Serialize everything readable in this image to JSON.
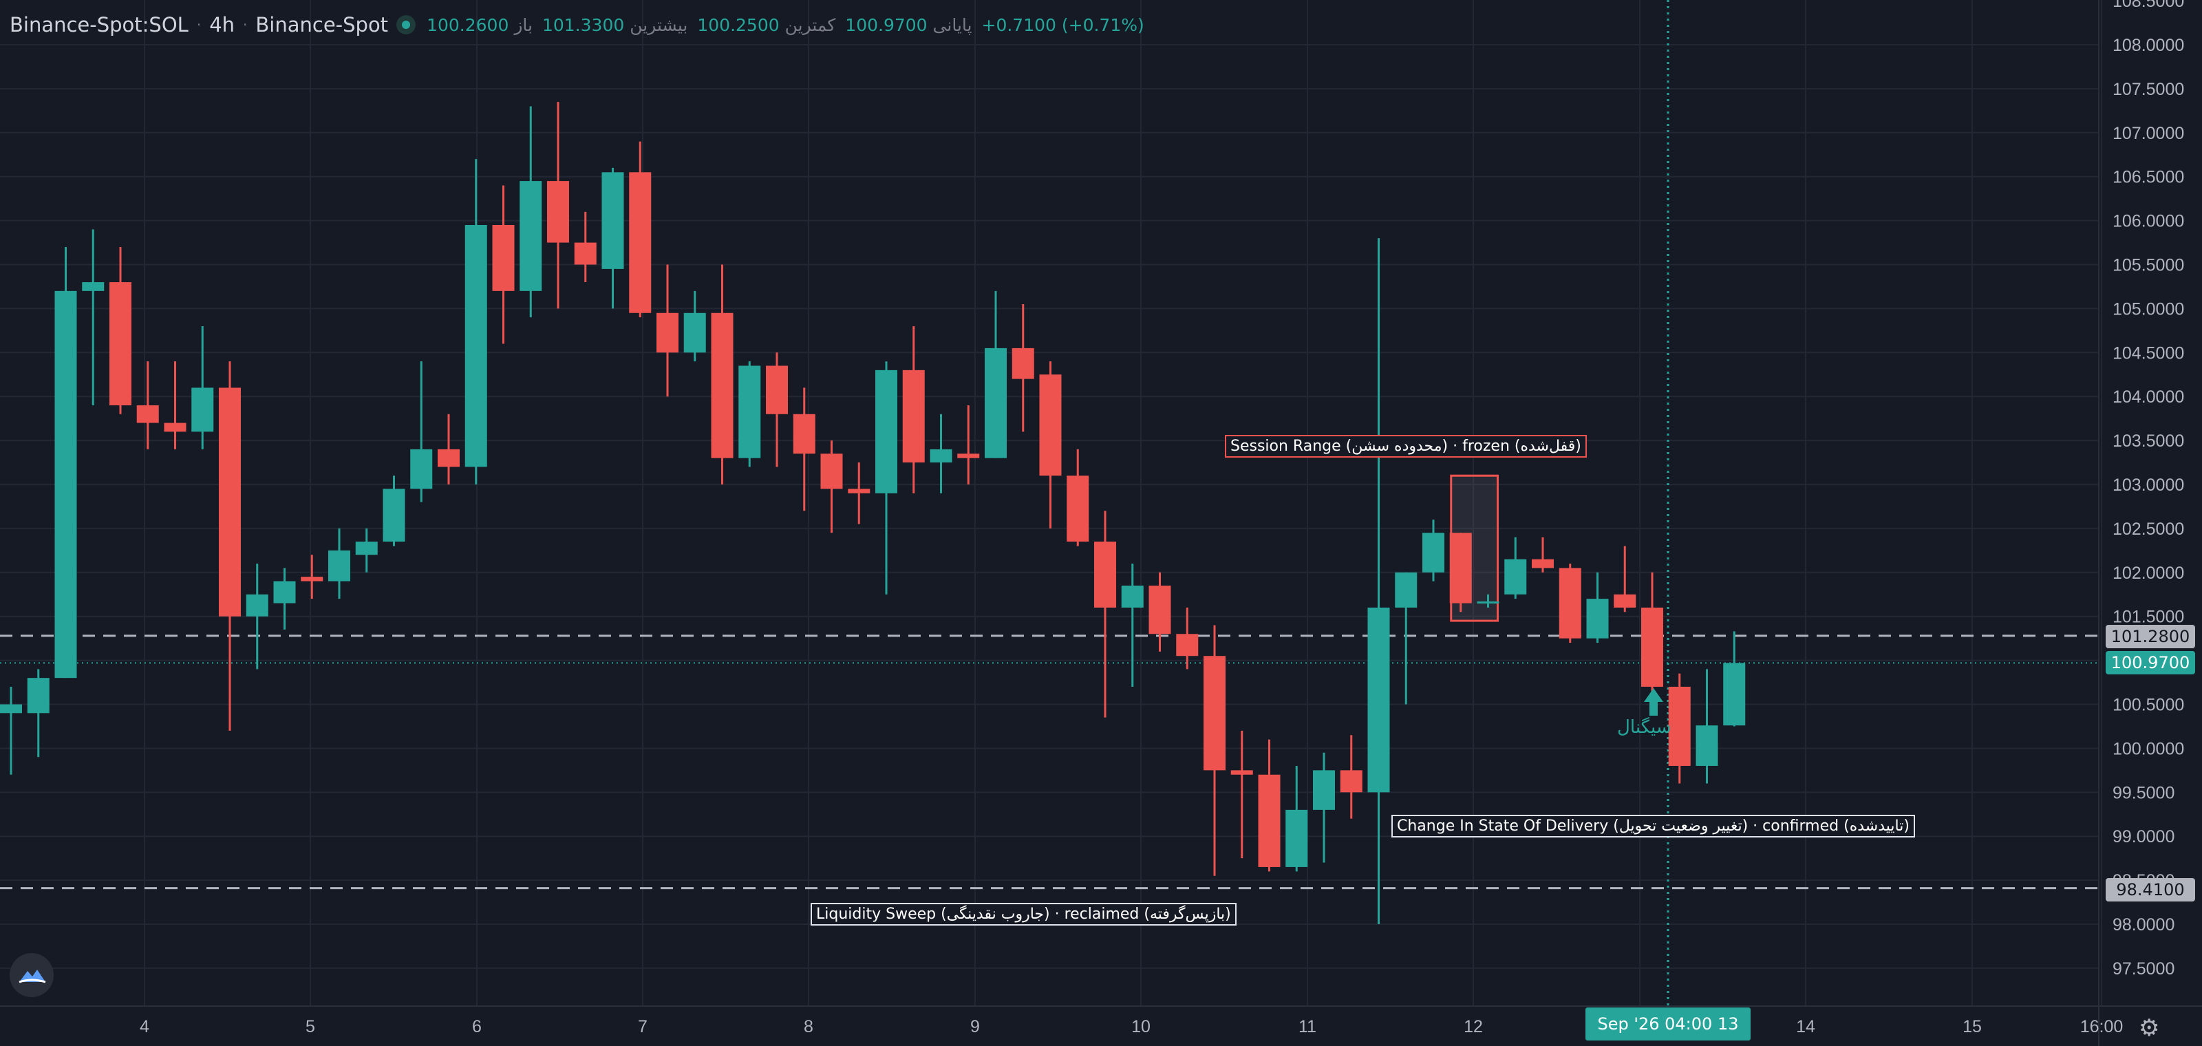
{
  "header": {
    "symbol": "Binance-Spot:SOL",
    "interval": "4h",
    "exchange": "Binance-Spot",
    "open_label": "باز",
    "open": "100.2600",
    "high_label": "بیشترین",
    "high": "101.3300",
    "low_label": "کمترین",
    "low": "100.2500",
    "close_label": "پایانی",
    "close": "100.9700",
    "change": "+0.7100 (+0.71%)"
  },
  "colors": {
    "up": "#26a69a",
    "down": "#ef5350",
    "background": "#161a25",
    "grid": "#232734"
  },
  "chart_data": {
    "type": "candlestick",
    "y_axis_ticks": [
      "108.0000",
      "107.5000",
      "107.0000",
      "106.5000",
      "106.0000",
      "105.5000",
      "105.0000",
      "104.5000",
      "104.0000",
      "103.5000",
      "103.0000",
      "102.5000",
      "102.0000",
      "101.5000",
      "101.0000",
      "100.5000",
      "100.0000",
      "99.5000",
      "99.0000",
      "98.5000",
      "98.0000",
      "97.5000"
    ],
    "y_axis_partial_top": "108.5000",
    "ylim": [
      97.2,
      108.6
    ],
    "x_axis_ticks": [
      "4",
      "5",
      "6",
      "7",
      "8",
      "9",
      "10",
      "11",
      "12",
      "13",
      "14",
      "15",
      "16:00"
    ],
    "candles": [
      {
        "o": 100.4,
        "h": 100.7,
        "l": 99.7,
        "c": 100.5
      },
      {
        "o": 100.4,
        "h": 100.9,
        "l": 99.9,
        "c": 100.8
      },
      {
        "o": 100.8,
        "h": 105.7,
        "l": 100.8,
        "c": 105.2
      },
      {
        "o": 105.2,
        "h": 105.9,
        "l": 103.9,
        "c": 105.3
      },
      {
        "o": 105.3,
        "h": 105.7,
        "l": 103.8,
        "c": 103.9
      },
      {
        "o": 103.9,
        "h": 104.4,
        "l": 103.4,
        "c": 103.7
      },
      {
        "o": 103.7,
        "h": 104.4,
        "l": 103.4,
        "c": 103.6
      },
      {
        "o": 103.6,
        "h": 104.8,
        "l": 103.4,
        "c": 104.1
      },
      {
        "o": 104.1,
        "h": 104.4,
        "l": 100.2,
        "c": 101.5
      },
      {
        "o": 101.5,
        "h": 102.1,
        "l": 100.9,
        "c": 101.75
      },
      {
        "o": 101.65,
        "h": 102.05,
        "l": 101.35,
        "c": 101.9
      },
      {
        "o": 101.95,
        "h": 102.2,
        "l": 101.7,
        "c": 101.9
      },
      {
        "o": 101.9,
        "h": 102.5,
        "l": 101.7,
        "c": 102.25
      },
      {
        "o": 102.2,
        "h": 102.5,
        "l": 102.0,
        "c": 102.35
      },
      {
        "o": 102.35,
        "h": 103.1,
        "l": 102.3,
        "c": 102.95
      },
      {
        "o": 102.95,
        "h": 104.4,
        "l": 102.8,
        "c": 103.4
      },
      {
        "o": 103.4,
        "h": 103.8,
        "l": 103.0,
        "c": 103.2
      },
      {
        "o": 103.2,
        "h": 106.7,
        "l": 103.0,
        "c": 105.95
      },
      {
        "o": 105.95,
        "h": 106.4,
        "l": 104.6,
        "c": 105.2
      },
      {
        "o": 105.2,
        "h": 107.3,
        "l": 104.9,
        "c": 106.45
      },
      {
        "o": 106.45,
        "h": 107.35,
        "l": 105.0,
        "c": 105.75
      },
      {
        "o": 105.75,
        "h": 106.1,
        "l": 105.3,
        "c": 105.5
      },
      {
        "o": 105.45,
        "h": 106.6,
        "l": 105.0,
        "c": 106.55
      },
      {
        "o": 106.55,
        "h": 106.9,
        "l": 104.9,
        "c": 104.95
      },
      {
        "o": 104.95,
        "h": 105.5,
        "l": 104.0,
        "c": 104.5
      },
      {
        "o": 104.5,
        "h": 105.2,
        "l": 104.4,
        "c": 104.95
      },
      {
        "o": 104.95,
        "h": 105.5,
        "l": 103.0,
        "c": 103.3
      },
      {
        "o": 103.3,
        "h": 104.4,
        "l": 103.2,
        "c": 104.35
      },
      {
        "o": 104.35,
        "h": 104.5,
        "l": 103.2,
        "c": 103.8
      },
      {
        "o": 103.8,
        "h": 104.1,
        "l": 102.7,
        "c": 103.35
      },
      {
        "o": 103.35,
        "h": 103.5,
        "l": 102.45,
        "c": 102.95
      },
      {
        "o": 102.95,
        "h": 103.25,
        "l": 102.55,
        "c": 102.9
      },
      {
        "o": 102.9,
        "h": 104.4,
        "l": 101.75,
        "c": 104.3
      },
      {
        "o": 104.3,
        "h": 104.8,
        "l": 102.9,
        "c": 103.25
      },
      {
        "o": 103.25,
        "h": 103.8,
        "l": 102.9,
        "c": 103.4
      },
      {
        "o": 103.35,
        "h": 103.9,
        "l": 103.0,
        "c": 103.3
      },
      {
        "o": 103.3,
        "h": 105.2,
        "l": 103.3,
        "c": 104.55
      },
      {
        "o": 104.55,
        "h": 105.05,
        "l": 103.6,
        "c": 104.2
      },
      {
        "o": 104.25,
        "h": 104.4,
        "l": 102.5,
        "c": 103.1
      },
      {
        "o": 103.1,
        "h": 103.4,
        "l": 102.3,
        "c": 102.35
      },
      {
        "o": 102.35,
        "h": 102.7,
        "l": 100.35,
        "c": 101.6
      },
      {
        "o": 101.6,
        "h": 102.1,
        "l": 100.7,
        "c": 101.85
      },
      {
        "o": 101.85,
        "h": 102.0,
        "l": 101.1,
        "c": 101.3
      },
      {
        "o": 101.3,
        "h": 101.6,
        "l": 100.9,
        "c": 101.05
      },
      {
        "o": 101.05,
        "h": 101.4,
        "l": 98.55,
        "c": 99.75
      },
      {
        "o": 99.75,
        "h": 100.2,
        "l": 98.75,
        "c": 99.7
      },
      {
        "o": 99.7,
        "h": 100.1,
        "l": 98.6,
        "c": 98.65
      },
      {
        "o": 98.65,
        "h": 99.8,
        "l": 98.6,
        "c": 99.3
      },
      {
        "o": 99.3,
        "h": 99.95,
        "l": 98.7,
        "c": 99.75
      },
      {
        "o": 99.75,
        "h": 100.15,
        "l": 99.2,
        "c": 99.5
      },
      {
        "o": 99.5,
        "h": 105.8,
        "l": 98.0,
        "c": 101.6
      },
      {
        "o": 101.6,
        "h": 102.0,
        "l": 100.5,
        "c": 102.0
      },
      {
        "o": 102.0,
        "h": 102.6,
        "l": 101.9,
        "c": 102.45
      },
      {
        "o": 102.45,
        "h": 102.45,
        "l": 101.55,
        "c": 101.65
      },
      {
        "o": 101.65,
        "h": 101.75,
        "l": 101.6,
        "c": 101.67
      },
      {
        "o": 101.75,
        "h": 102.4,
        "l": 101.7,
        "c": 102.15
      },
      {
        "o": 102.15,
        "h": 102.4,
        "l": 102.0,
        "c": 102.05
      },
      {
        "o": 102.05,
        "h": 102.1,
        "l": 101.2,
        "c": 101.25
      },
      {
        "o": 101.25,
        "h": 102.0,
        "l": 101.2,
        "c": 101.7
      },
      {
        "o": 101.75,
        "h": 102.3,
        "l": 101.55,
        "c": 101.6
      },
      {
        "o": 101.6,
        "h": 102.0,
        "l": 100.6,
        "c": 100.7
      },
      {
        "o": 100.7,
        "h": 100.85,
        "l": 99.6,
        "c": 99.8
      },
      {
        "o": 99.8,
        "h": 100.9,
        "l": 99.6,
        "c": 100.26
      },
      {
        "o": 100.26,
        "h": 101.33,
        "l": 100.25,
        "c": 100.97
      }
    ],
    "price_lines": [
      {
        "value": 101.28,
        "label": "101.2800",
        "style": "dashed"
      },
      {
        "value": 100.97,
        "label": "100.9700",
        "style": "dotted-current"
      },
      {
        "value": 98.41,
        "label": "98.4100",
        "style": "dashed"
      }
    ],
    "session_box": {
      "from_index": 53,
      "to_index": 54,
      "high": 103.1,
      "low": 101.45
    },
    "signal": {
      "index": 60,
      "label": "سیگنال"
    },
    "annotations": [
      {
        "text": "Session Range (محدوده سشن) · frozen (قفل‌شده)",
        "color": "#ef5350"
      },
      {
        "text": "Change In State Of Delivery (تغییر وضعیت تحویل) · confirmed (تاییدشده)",
        "color": "#e0e3eb"
      },
      {
        "text": "Liquidity Sweep (جاروب نقدینگی) · reclaimed (بازپس‌گرفته)",
        "color": "#e0e3eb"
      }
    ],
    "crosshair_time_label": "Sep '26   04:00 13"
  }
}
